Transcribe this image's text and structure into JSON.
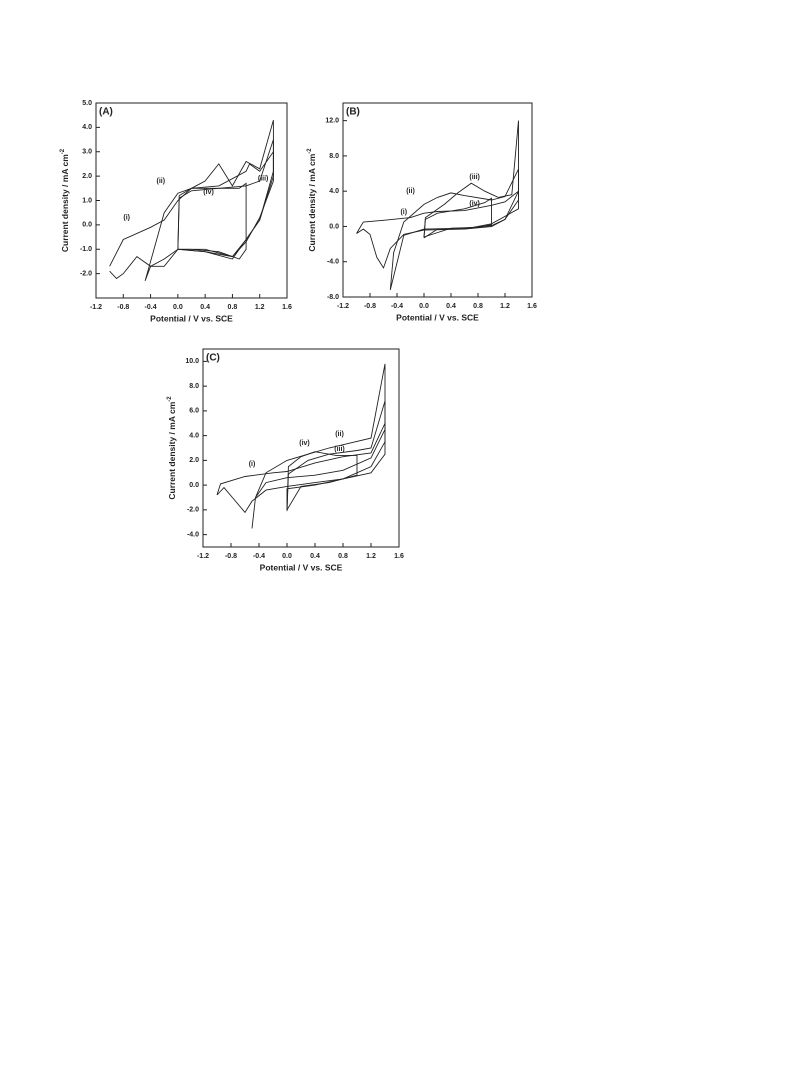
{
  "chart_data": [
    {
      "type": "line",
      "panel_label": "(A)",
      "xlabel": "Potential / V vs. SCE",
      "ylabel": "Current density / mA cm",
      "ylabel_sup": "-2",
      "xlim": [
        -1.2,
        1.6
      ],
      "ylim": [
        -3,
        5
      ],
      "xticks": [
        -1.2,
        -0.8,
        -0.4,
        {
          "value": 0,
          "label": "0.0"
        },
        0.4,
        0.8,
        1.2,
        1.6
      ],
      "yticks": [
        {
          "value": -2,
          "label": "-2.0"
        },
        {
          "value": -1,
          "label": "-1.0"
        },
        {
          "value": 0,
          "label": "0.0"
        },
        {
          "value": 1,
          "label": "1.0"
        },
        {
          "value": 2,
          "label": "2.0"
        },
        {
          "value": 3,
          "label": "3.0"
        },
        {
          "value": 4,
          "label": "4.0"
        },
        {
          "value": 5,
          "label": "5.0"
        }
      ],
      "series": [
        {
          "name": "(i)",
          "color": "#222222",
          "x": [
            -1.0,
            -0.8,
            -0.4,
            -0.2,
            0,
            0.2,
            0.4,
            0.6,
            0.8,
            1.0,
            1.2,
            1.4,
            1.4,
            1.2,
            1.0,
            0.8,
            0.4,
            0,
            -0.2,
            -0.4,
            -0.6,
            -0.8,
            -0.9,
            -1.0
          ],
          "values": [
            -1.7,
            -0.6,
            -0.1,
            0.2,
            1.0,
            1.5,
            1.8,
            2.5,
            1.6,
            2.6,
            2.3,
            4.3,
            2.0,
            0.2,
            -0.6,
            -1.4,
            -1.1,
            -1.0,
            -1.4,
            -1.7,
            -1.3,
            -2.0,
            -2.2,
            -1.9
          ]
        },
        {
          "name": "(ii)",
          "color": "#222222",
          "x": [
            -0.48,
            -0.4,
            -0.2,
            0,
            0.2,
            0.6,
            1.0,
            1.2,
            1.4,
            1.4,
            1.2,
            1.0,
            0.8,
            0.4,
            0,
            -0.2,
            -0.4,
            -0.48
          ],
          "values": [
            -2.3,
            -1.5,
            0.5,
            1.3,
            1.5,
            1.5,
            1.6,
            1.8,
            3.5,
            2.2,
            0.2,
            -0.6,
            -1.3,
            -1.1,
            -1.0,
            -1.7,
            -1.7,
            -2.3
          ]
        },
        {
          "name": "(iii)",
          "color": "#222222",
          "x": [
            0,
            0.02,
            0.2,
            0.6,
            1.0,
            1.05,
            1.2,
            1.4,
            1.4,
            1.2,
            1.0,
            0.8,
            0.4,
            0
          ],
          "values": [
            -1.0,
            1.2,
            1.5,
            1.6,
            2.2,
            2.5,
            2.2,
            3.0,
            1.8,
            0.3,
            -0.7,
            -1.3,
            -1.0,
            -1.0
          ]
        },
        {
          "name": "(iv)",
          "color": "#222222",
          "x": [
            0,
            0.02,
            0.2,
            0.6,
            0.9,
            1.0,
            1.0,
            0.9,
            0.6,
            0.2,
            0
          ],
          "values": [
            -1.0,
            1.1,
            1.4,
            1.5,
            1.5,
            1.7,
            -1.0,
            -1.4,
            -1.1,
            -1.0,
            -1.0
          ]
        }
      ]
    },
    {
      "type": "line",
      "panel_label": "(B)",
      "xlabel": "Potential / V vs. SCE",
      "ylabel": "Current density / mA cm",
      "ylabel_sup": "-2",
      "xlim": [
        -1.2,
        1.6
      ],
      "ylim": [
        -8,
        14
      ],
      "xticks": [
        -1.2,
        -0.8,
        -0.4,
        {
          "value": 0,
          "label": "0.0"
        },
        0.4,
        0.8,
        1.2,
        1.6
      ],
      "yticks": [
        {
          "value": -8,
          "label": "-8.0"
        },
        {
          "value": -4,
          "label": "-4.0"
        },
        {
          "value": 0,
          "label": "0.0"
        },
        {
          "value": 4,
          "label": "4.0"
        },
        {
          "value": 8,
          "label": "8.0"
        },
        {
          "value": 12,
          "label": "12.0"
        }
      ],
      "series": [
        {
          "name": "(i)",
          "color": "#222222",
          "x": [
            -1.0,
            -0.9,
            -0.6,
            -0.2,
            0,
            0.2,
            0.6,
            1.0,
            1.2,
            1.4,
            1.4,
            1.0,
            0.6,
            0,
            -0.3,
            -0.5,
            -0.6,
            -0.7,
            -0.8,
            -0.9,
            -1.0
          ],
          "values": [
            -0.8,
            0.5,
            0.7,
            1.0,
            1.5,
            1.7,
            1.8,
            2.4,
            2.8,
            4.0,
            2.0,
            0.3,
            -0.3,
            -0.4,
            -0.9,
            -2.5,
            -4.7,
            -3.5,
            -0.9,
            -0.3,
            -0.8
          ]
        },
        {
          "name": "(ii)",
          "color": "#222222",
          "x": [
            -0.5,
            -0.45,
            -0.3,
            0,
            0.2,
            0.4,
            0.6,
            1.0,
            1.2,
            1.4,
            1.4,
            1.2,
            1.0,
            0.6,
            0,
            -0.3,
            -0.5
          ],
          "values": [
            -7.2,
            -3,
            0.5,
            2.5,
            3.3,
            3.8,
            3.5,
            3.0,
            3.4,
            6.5,
            3.0,
            0.8,
            0.1,
            -0.2,
            -0.3,
            -1.0,
            -7.2
          ]
        },
        {
          "name": "(iii)",
          "color": "#222222",
          "x": [
            0,
            0.02,
            0.3,
            0.5,
            0.7,
            0.9,
            1.1,
            1.3,
            1.4,
            1.4,
            1.2,
            1.0,
            0.6,
            0.2,
            0
          ],
          "values": [
            -1.3,
            1.0,
            2.5,
            3.8,
            4.9,
            4.0,
            3.3,
            3.6,
            12.0,
            4.0,
            0.8,
            0.0,
            -0.3,
            -0.3,
            -1.3
          ]
        },
        {
          "name": "(iv)",
          "color": "#222222",
          "x": [
            0,
            0.02,
            0.2,
            0.6,
            0.9,
            1.0,
            1.0,
            0.8,
            0.4,
            0
          ],
          "values": [
            -1.2,
            0.8,
            1.5,
            2.0,
            2.7,
            3.2,
            0.2,
            -0.1,
            -0.2,
            -1.2
          ]
        }
      ]
    },
    {
      "type": "line",
      "panel_label": "(C)",
      "xlabel": "Potential / V vs. SCE",
      "ylabel": "Current density / mA cm",
      "ylabel_sup": "-2",
      "xlim": [
        -1.2,
        1.6
      ],
      "ylim": [
        -5,
        11
      ],
      "xticks": [
        -1.2,
        -0.8,
        -0.4,
        {
          "value": 0,
          "label": "0.0"
        },
        0.4,
        0.8,
        1.2,
        1.6
      ],
      "yticks": [
        {
          "value": -4,
          "label": "-4.0"
        },
        {
          "value": -2,
          "label": "-2.0"
        },
        {
          "value": 0,
          "label": "0.0"
        },
        {
          "value": 2,
          "label": "2.0"
        },
        {
          "value": 4,
          "label": "4.0"
        },
        {
          "value": 6,
          "label": "6.0"
        },
        {
          "value": 8,
          "label": "8.0"
        },
        {
          "value": 10,
          "label": "10.0"
        }
      ],
      "series": [
        {
          "name": "(i)",
          "color": "#222222",
          "x": [
            -1.0,
            -0.95,
            -0.6,
            -0.2,
            0,
            0.4,
            0.8,
            1.2,
            1.4,
            1.4,
            1.2,
            0.8,
            0.4,
            0,
            -0.3,
            -0.5,
            -0.6,
            -0.75,
            -0.9,
            -1.0
          ],
          "values": [
            -0.8,
            0.1,
            0.7,
            1.0,
            1.1,
            1.8,
            2.3,
            2.6,
            5.0,
            2.5,
            1.0,
            0.5,
            0.2,
            -0.1,
            -0.4,
            -1.3,
            -2.2,
            -1.2,
            -0.2,
            -0.8
          ]
        },
        {
          "name": "(ii)",
          "color": "#222222",
          "x": [
            -0.5,
            -0.45,
            -0.3,
            0,
            0.3,
            0.6,
            0.9,
            1.2,
            1.4,
            1.4,
            1.2,
            0.8,
            0.4,
            0,
            -0.3,
            -0.45,
            -0.5
          ],
          "values": [
            -3.5,
            -1.0,
            1.0,
            2.0,
            2.5,
            3.0,
            3.4,
            3.8,
            9.8,
            4.5,
            2.2,
            1.2,
            0.8,
            0.6,
            0.2,
            -1.0,
            -3.5
          ]
        },
        {
          "name": "(iii)",
          "color": "#222222",
          "x": [
            0,
            0.02,
            0.3,
            0.6,
            1.0,
            1.2,
            1.4,
            1.4,
            1.2,
            0.8,
            0.4,
            0,
            0
          ],
          "values": [
            -2.1,
            0.9,
            2.0,
            2.5,
            2.8,
            3.0,
            6.8,
            3.5,
            1.5,
            0.5,
            0.0,
            -0.3,
            -2.1
          ]
        },
        {
          "name": "(iv)",
          "color": "#222222",
          "x": [
            0,
            0.02,
            0.2,
            0.4,
            0.7,
            1.0,
            1.0,
            0.6,
            0.2,
            0
          ],
          "values": [
            -2.0,
            1.5,
            2.3,
            2.7,
            2.4,
            2.4,
            0.8,
            0.2,
            -0.1,
            -2.0
          ]
        }
      ]
    }
  ]
}
